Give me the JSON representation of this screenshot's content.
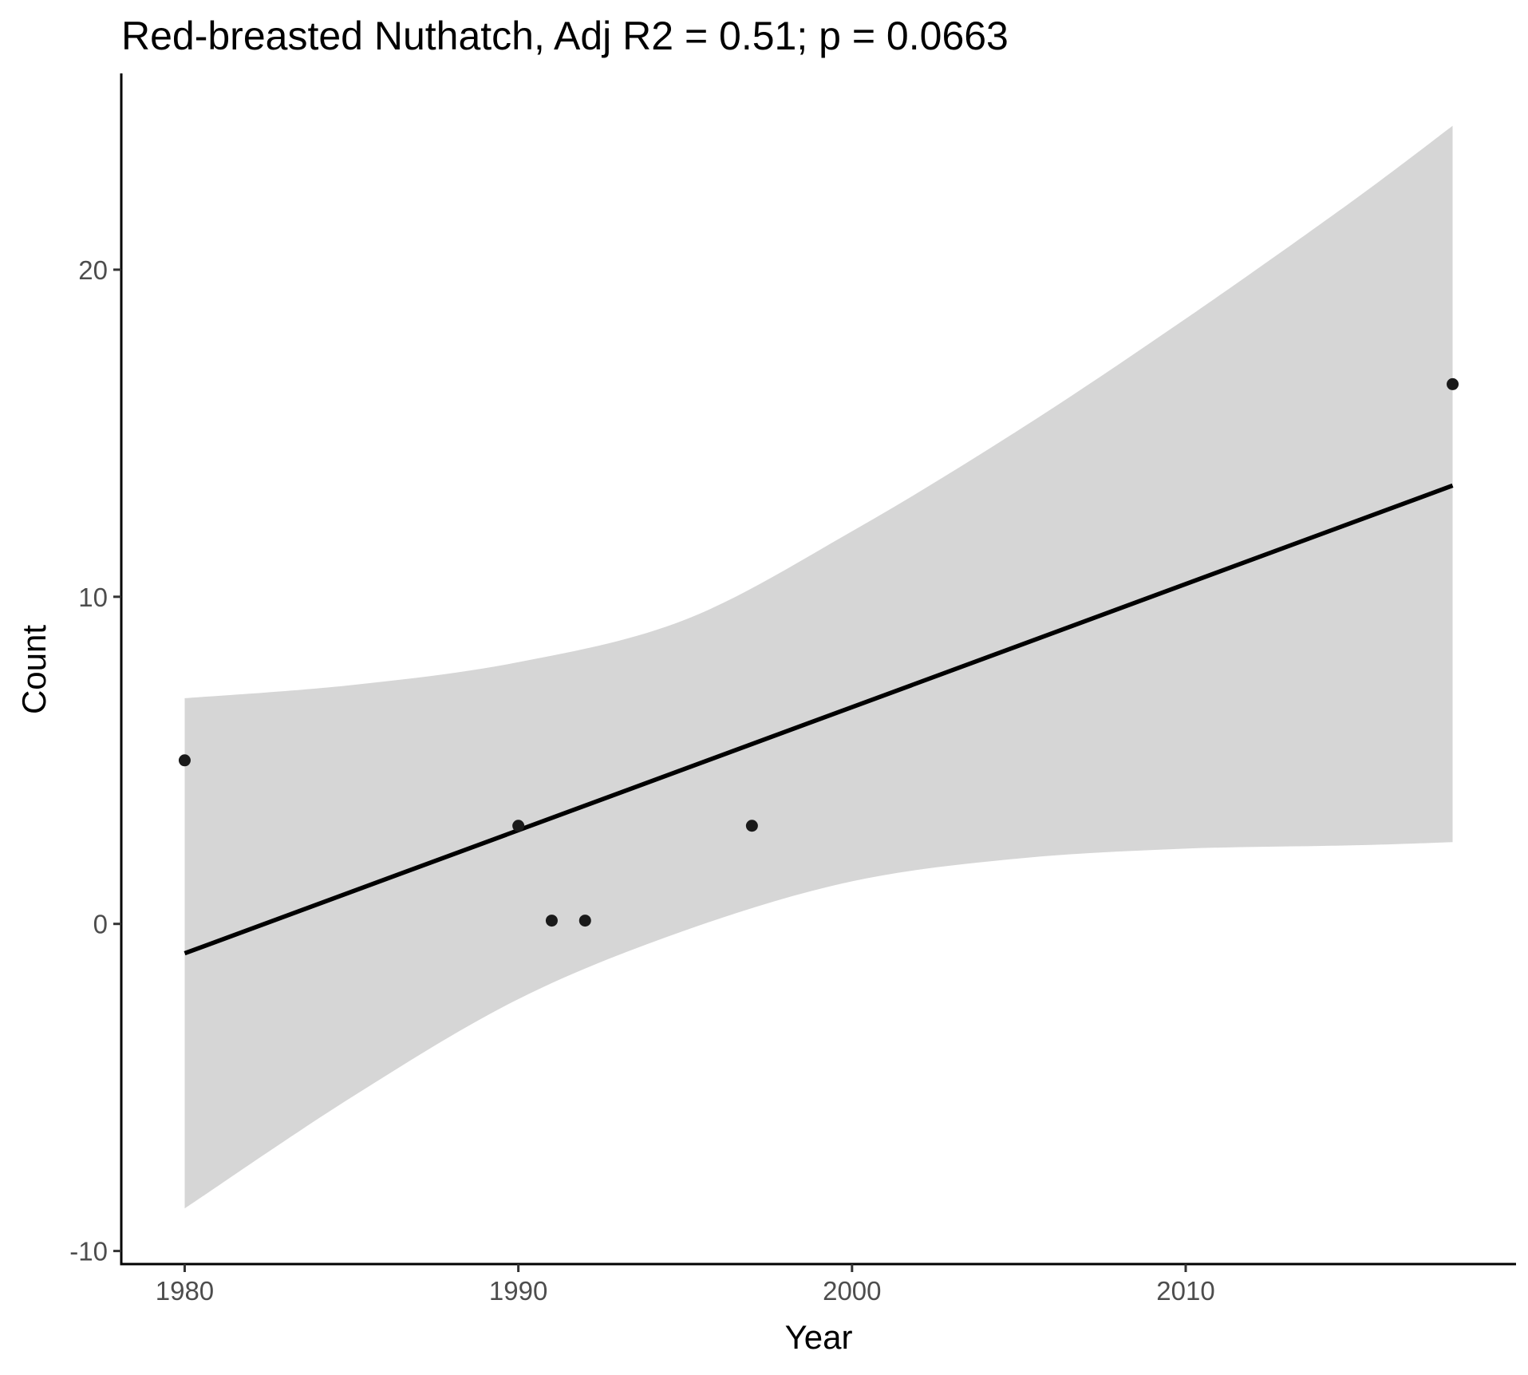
{
  "chart_data": {
    "type": "scatter",
    "title": "Red-breasted Nuthatch, Adj R2 = 0.51; p = 0.0663",
    "xlabel": "Year",
    "ylabel": "Count",
    "xlim": [
      1978.1,
      2019.9
    ],
    "ylim": [
      -10.4,
      26.0
    ],
    "x_ticks": [
      1980,
      1990,
      2000,
      2010
    ],
    "x_tick_labels": [
      "1980",
      "1990",
      "2000",
      "2010"
    ],
    "y_ticks": [
      -10,
      0,
      10,
      20
    ],
    "y_tick_labels": [
      "-10",
      "0",
      "10",
      "20"
    ],
    "grid": false,
    "legend": "none",
    "series": [
      {
        "points": [
          {
            "x": 1980,
            "y": 5
          },
          {
            "x": 1990,
            "y": 3
          },
          {
            "x": 1991,
            "y": 0.1
          },
          {
            "x": 1992,
            "y": 0.1
          },
          {
            "x": 1997,
            "y": 3
          },
          {
            "x": 2018,
            "y": 16.5
          }
        ]
      }
    ],
    "fit_line": {
      "x": [
        1980,
        2018
      ],
      "y": [
        -0.9,
        13.4
      ]
    },
    "confidence_band": {
      "x": [
        1980,
        1985,
        1990,
        1995,
        2000,
        2005,
        2010,
        2015,
        2018
      ],
      "lower": [
        -8.7,
        -5.3,
        -2.3,
        -0.2,
        1.3,
        2.0,
        2.3,
        2.4,
        2.5
      ],
      "upper": [
        6.9,
        7.3,
        8.0,
        9.3,
        12.0,
        15.1,
        18.5,
        22.1,
        24.4
      ]
    },
    "colors": {
      "points": "#1a1a1a",
      "fit_line": "#000000",
      "band": "#d6d6d6",
      "axis": "#000000",
      "tick_label": "#4d4d4d"
    }
  }
}
